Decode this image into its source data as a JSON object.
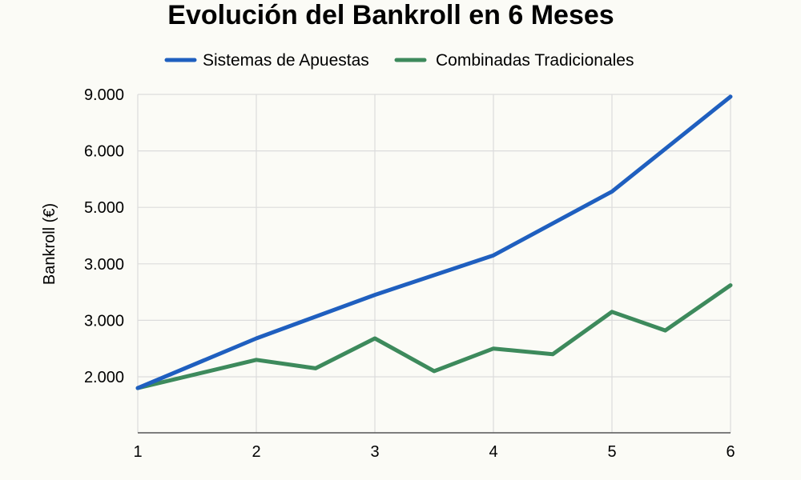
{
  "chart_data": {
    "type": "line",
    "title": "Evolución del Bankroll en 6 Meses",
    "xlabel": "",
    "ylabel": "Bankroll (€)",
    "x_ticks": [
      "1",
      "2",
      "3",
      "4",
      "5",
      "6"
    ],
    "y_ticks": [
      "2.000",
      "3.000",
      "3.000",
      "5.000",
      "6.000",
      "9.000"
    ],
    "grid": true,
    "legend_position": "top",
    "series": [
      {
        "name": "Sistemas de Apuestas",
        "color": "#1f5fbf",
        "x": [
          1,
          2,
          3,
          4,
          5,
          6
        ],
        "y": [
          1800,
          2680,
          3450,
          4150,
          5280,
          8880
        ]
      },
      {
        "name": "Combinadas Tradicionales",
        "color": "#3d8a5c",
        "x": [
          1,
          2,
          2.5,
          3,
          3.5,
          4,
          4.5,
          5,
          5.45,
          6
        ],
        "y": [
          1800,
          2300,
          2150,
          2680,
          2100,
          2500,
          2400,
          3150,
          2820,
          3620
        ]
      }
    ]
  }
}
